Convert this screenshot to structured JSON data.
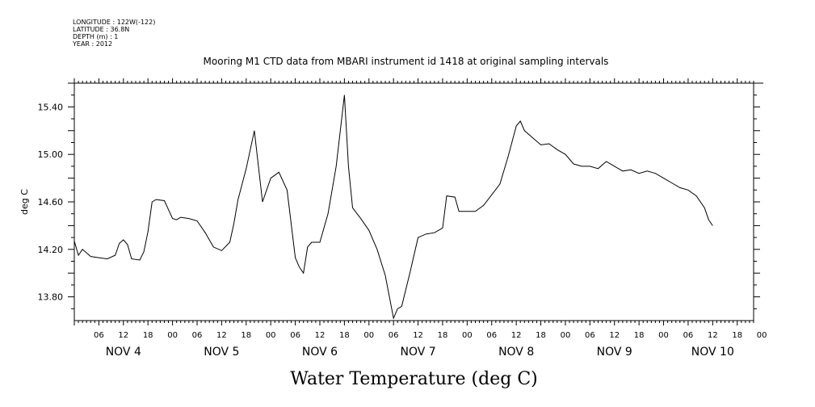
{
  "meta_lines": [
    "LONGITUDE : 122W(-122)",
    "LATITUDE : 36.8N",
    "DEPTH (m) : 1",
    "YEAR : 2012"
  ],
  "chart_data": {
    "type": "line",
    "title": "Mooring M1 CTD data from MBARI instrument id 1418 at original sampling intervals",
    "xlabel": "Water Temperature (deg C)",
    "ylabel": "deg C",
    "ylim": [
      13.6,
      15.6
    ],
    "yticks": [
      "13.80",
      "14.20",
      "14.60",
      "15.00",
      "15.40"
    ],
    "xlim_hours": [
      0,
      166
    ],
    "hour_ticks": [
      "06",
      "12",
      "18",
      "00",
      "06",
      "12",
      "18",
      "00",
      "06",
      "12",
      "18",
      "00",
      "06",
      "12",
      "18",
      "00",
      "06",
      "12",
      "18",
      "00",
      "06",
      "12",
      "18",
      "00",
      "06",
      "12",
      "18",
      "00"
    ],
    "day_labels": [
      "NOV 4",
      "NOV 5",
      "NOV 6",
      "NOV 7",
      "NOV 8",
      "NOV 9",
      "NOV 10"
    ],
    "series": [
      {
        "color": "#000000",
        "points": [
          [
            0,
            14.27
          ],
          [
            1,
            14.15
          ],
          [
            2,
            14.2
          ],
          [
            4,
            14.14
          ],
          [
            6,
            14.13
          ],
          [
            8,
            14.12
          ],
          [
            10,
            14.15
          ],
          [
            11,
            14.25
          ],
          [
            12,
            14.28
          ],
          [
            13,
            14.24
          ],
          [
            14,
            14.12
          ],
          [
            16,
            14.11
          ],
          [
            17,
            14.18
          ],
          [
            18,
            14.35
          ],
          [
            19,
            14.6
          ],
          [
            20,
            14.62
          ],
          [
            22,
            14.61
          ],
          [
            24,
            14.46
          ],
          [
            25,
            14.45
          ],
          [
            26,
            14.47
          ],
          [
            28,
            14.46
          ],
          [
            30,
            14.44
          ],
          [
            32,
            14.34
          ],
          [
            34,
            14.22
          ],
          [
            36,
            14.19
          ],
          [
            38,
            14.26
          ],
          [
            39,
            14.42
          ],
          [
            40,
            14.62
          ],
          [
            42,
            14.88
          ],
          [
            44,
            15.2
          ],
          [
            46,
            14.6
          ],
          [
            48,
            14.8
          ],
          [
            50,
            14.85
          ],
          [
            52,
            14.7
          ],
          [
            54,
            14.13
          ],
          [
            55,
            14.05
          ],
          [
            56,
            14.0
          ],
          [
            57,
            14.22
          ],
          [
            58,
            14.26
          ],
          [
            60,
            14.26
          ],
          [
            62,
            14.5
          ],
          [
            64,
            14.9
          ],
          [
            66,
            15.5
          ],
          [
            67,
            14.9
          ],
          [
            68,
            14.55
          ],
          [
            70,
            14.46
          ],
          [
            72,
            14.36
          ],
          [
            74,
            14.2
          ],
          [
            76,
            13.98
          ],
          [
            78,
            13.62
          ],
          [
            79,
            13.7
          ],
          [
            80,
            13.72
          ],
          [
            82,
            14.0
          ],
          [
            84,
            14.3
          ],
          [
            86,
            14.33
          ],
          [
            88,
            14.34
          ],
          [
            90,
            14.38
          ],
          [
            91,
            14.65
          ],
          [
            93,
            14.64
          ],
          [
            94,
            14.52
          ],
          [
            96,
            14.52
          ],
          [
            98,
            14.52
          ],
          [
            100,
            14.57
          ],
          [
            102,
            14.66
          ],
          [
            104,
            14.75
          ],
          [
            106,
            14.98
          ],
          [
            108,
            15.24
          ],
          [
            109,
            15.28
          ],
          [
            110,
            15.2
          ],
          [
            112,
            15.14
          ],
          [
            114,
            15.08
          ],
          [
            116,
            15.09
          ],
          [
            118,
            15.04
          ],
          [
            120,
            15.0
          ],
          [
            122,
            14.92
          ],
          [
            124,
            14.9
          ],
          [
            126,
            14.9
          ],
          [
            128,
            14.88
          ],
          [
            130,
            14.94
          ],
          [
            132,
            14.9
          ],
          [
            134,
            14.86
          ],
          [
            136,
            14.87
          ],
          [
            138,
            14.84
          ],
          [
            140,
            14.86
          ],
          [
            142,
            14.84
          ],
          [
            144,
            14.8
          ],
          [
            146,
            14.76
          ],
          [
            148,
            14.72
          ],
          [
            150,
            14.7
          ],
          [
            152,
            14.65
          ],
          [
            154,
            14.55
          ],
          [
            155,
            14.45
          ],
          [
            156,
            14.4
          ]
        ]
      }
    ]
  }
}
